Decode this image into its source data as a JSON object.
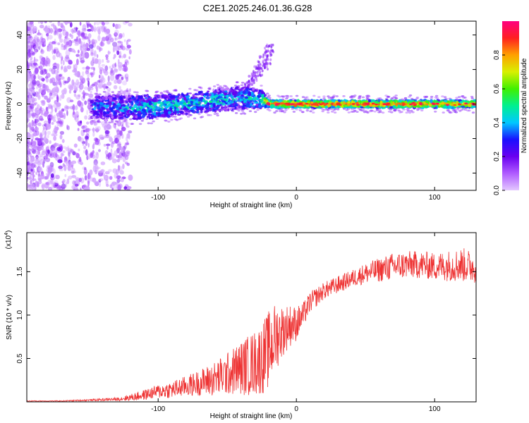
{
  "title": "C2E1.2025.246.01.36.G28",
  "chart_data": [
    {
      "type": "heatmap",
      "title": "C2E1.2025.246.01.36.G28",
      "xlabel": "Height of straight line (km)",
      "ylabel": "Frequency (Hz)",
      "xlim": [
        -195,
        130
      ],
      "ylim": [
        -50,
        48
      ],
      "xticks": [
        -100,
        0,
        100
      ],
      "xtick_labels": [
        "-100",
        "0",
        "100"
      ],
      "yticks": [
        40,
        20,
        0,
        -20,
        -40
      ],
      "ytick_labels": [
        "40",
        "20",
        "0",
        "-20",
        "-40"
      ],
      "colorbar": {
        "label": "Normalized spectral amplitude",
        "range": [
          0,
          1
        ],
        "ticks": [
          0.0,
          0.2,
          0.4,
          0.6,
          0.8
        ],
        "tick_labels": [
          "0.0",
          "0.2",
          "0.4",
          "0.6",
          "0.8"
        ],
        "stops": [
          "#e3c8ff",
          "#b05cff",
          "#6a00f0",
          "#1a10ff",
          "#00c8ff",
          "#00f090",
          "#40f000",
          "#d8f000",
          "#ffa000",
          "#ff2020",
          "#ff0080"
        ]
      },
      "signal_band": [
        {
          "x": -145,
          "f_low": -8,
          "f_high": 4,
          "amplitude": 0.25
        },
        {
          "x": -120,
          "f_low": -9,
          "f_high": 5,
          "amplitude": 0.3
        },
        {
          "x": -100,
          "f_low": -8,
          "f_high": 5,
          "amplitude": 0.35
        },
        {
          "x": -80,
          "f_low": -6,
          "f_high": 6,
          "amplitude": 0.35
        },
        {
          "x": -60,
          "f_low": -4,
          "f_high": 8,
          "amplitude": 0.35
        },
        {
          "x": -40,
          "f_low": -3,
          "f_high": 10,
          "amplitude": 0.3
        },
        {
          "x": -25,
          "f_low": -2,
          "f_high": 8,
          "amplitude": 0.4
        },
        {
          "x": -20,
          "f_low": -2,
          "f_high": 2,
          "amplitude": 0.7
        },
        {
          "x": 0,
          "f_low": -2,
          "f_high": 2,
          "amplitude": 0.75
        },
        {
          "x": 50,
          "f_low": -2,
          "f_high": 2,
          "amplitude": 0.7
        },
        {
          "x": 130,
          "f_low": -2,
          "f_high": 2,
          "amplitude": 0.65
        }
      ],
      "spray": {
        "x_from": -40,
        "x_to": -18,
        "f_from": 5,
        "f_to": 35
      }
    },
    {
      "type": "line",
      "xlabel": "Height of straight line (km)",
      "ylabel": "SNR (10 * v/v)",
      "multiplier_label": "(x10",
      "multiplier_exponent": "4",
      "multiplier_close": ")",
      "xlim": [
        -195,
        130
      ],
      "ylim": [
        0,
        1.95
      ],
      "xticks": [
        -100,
        0,
        100
      ],
      "xtick_labels": [
        "-100",
        "0",
        "100"
      ],
      "yticks": [
        0.5,
        1.0,
        1.5
      ],
      "ytick_labels": [
        "0.5",
        "1.0",
        "1.5"
      ],
      "color": "#ee3333",
      "series": [
        {
          "name": "SNR",
          "x": [
            -195,
            -170,
            -150,
            -130,
            -120,
            -110,
            -100,
            -90,
            -80,
            -70,
            -60,
            -50,
            -42,
            -35,
            -30,
            -25,
            -20,
            -15,
            -10,
            -5,
            0,
            5,
            10,
            20,
            30,
            40,
            50,
            60,
            70,
            80,
            90,
            100,
            110,
            120,
            130
          ],
          "y": [
            0.01,
            0.01,
            0.02,
            0.03,
            0.05,
            0.08,
            0.12,
            0.14,
            0.18,
            0.22,
            0.26,
            0.32,
            0.38,
            0.42,
            0.45,
            0.5,
            0.6,
            0.75,
            0.82,
            0.88,
            0.9,
            1.0,
            1.15,
            1.28,
            1.35,
            1.42,
            1.48,
            1.52,
            1.56,
            1.58,
            1.58,
            1.56,
            1.57,
            1.58,
            1.55
          ],
          "noise": [
            0.005,
            0.005,
            0.01,
            0.02,
            0.04,
            0.06,
            0.08,
            0.1,
            0.12,
            0.15,
            0.2,
            0.25,
            0.3,
            0.35,
            0.38,
            0.42,
            0.45,
            0.4,
            0.3,
            0.25,
            0.2,
            0.15,
            0.12,
            0.1,
            0.1,
            0.1,
            0.12,
            0.14,
            0.16,
            0.16,
            0.16,
            0.16,
            0.18,
            0.2,
            0.18
          ]
        }
      ]
    }
  ]
}
